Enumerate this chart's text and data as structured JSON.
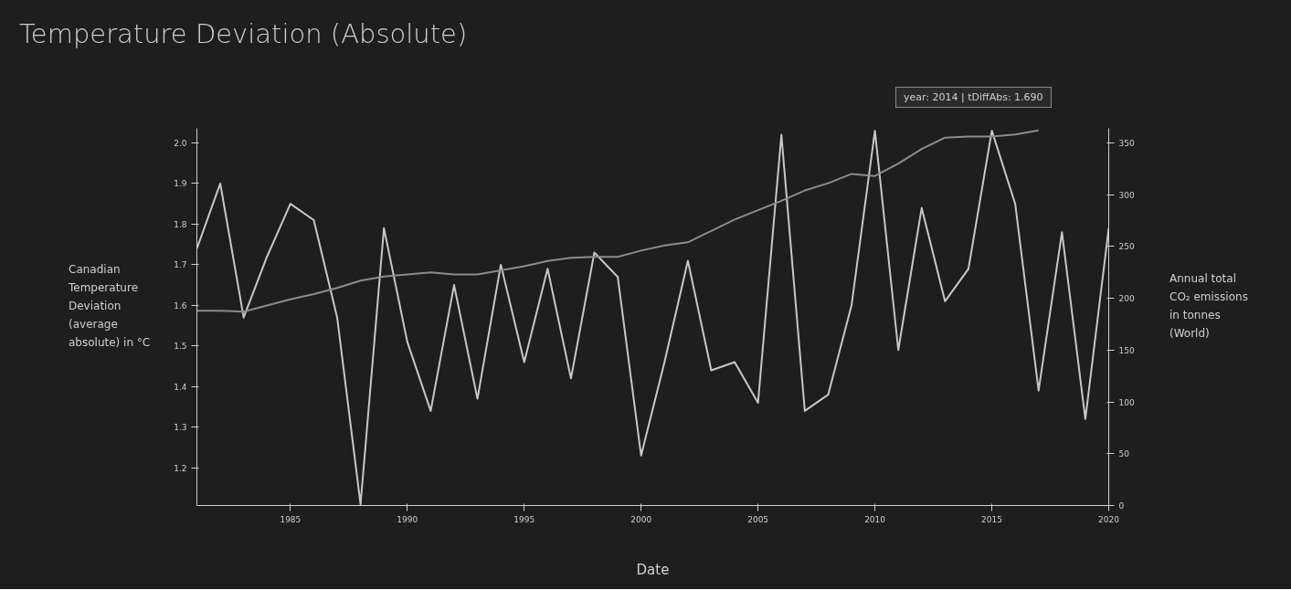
{
  "chart_data": {
    "type": "line",
    "title": "Temperature Deviation (Absolute)",
    "xlabel": "Date",
    "ylabel": "Canadian Temperature Deviation (average absolute) in °C",
    "y2label": "Annual total CO₂ emissions in tonnes (World)",
    "x": [
      1981,
      1982,
      1983,
      1984,
      1985,
      1986,
      1987,
      1988,
      1989,
      1990,
      1991,
      1992,
      1993,
      1994,
      1995,
      1996,
      1997,
      1998,
      1999,
      2000,
      2001,
      2002,
      2003,
      2004,
      2005,
      2006,
      2007,
      2008,
      2009,
      2010,
      2011,
      2012,
      2013,
      2014,
      2015,
      2016,
      2017,
      2018,
      2019,
      2020
    ],
    "series": [
      {
        "color": "#c8c8c8",
        "values": [
          1.74,
          1.9,
          1.57,
          1.72,
          1.85,
          1.81,
          1.57,
          1.11,
          1.79,
          1.51,
          1.34,
          1.65,
          1.37,
          1.7,
          1.46,
          1.69,
          1.42,
          1.73,
          1.67,
          1.23,
          1.46,
          1.71,
          1.44,
          1.46,
          1.36,
          2.02,
          1.34,
          1.38,
          1.6,
          2.03,
          1.49,
          1.84,
          1.61,
          1.69,
          2.03,
          1.85,
          1.39,
          1.78,
          1.32,
          1.79
        ]
      },
      {
        "color": "#8c8c8c",
        "axis": "y2",
        "x": [
          1981,
          1982,
          1983,
          1984,
          1985,
          1986,
          1987,
          1988,
          1989,
          1990,
          1991,
          1992,
          1993,
          1994,
          1995,
          1996,
          1997,
          1998,
          1999,
          2000,
          2001,
          2002,
          2003,
          2004,
          2005,
          2006,
          2007,
          2008,
          2009,
          2010,
          2011,
          2012,
          2013,
          2014,
          2015,
          2016,
          2017
        ],
        "values": [
          188,
          188,
          187,
          193,
          199,
          204,
          210,
          217,
          221,
          223,
          225,
          223,
          223,
          227,
          231,
          236,
          239,
          240,
          240,
          246,
          251,
          254,
          265,
          276,
          285,
          294,
          304,
          311,
          320,
          318,
          330,
          344,
          355,
          356,
          356,
          358,
          362
        ]
      }
    ],
    "xlim": [
      1981,
      2020
    ],
    "xticks": [
      1985,
      1990,
      1995,
      2000,
      2005,
      2010,
      2015,
      2020
    ],
    "ylim": [
      1.107,
      2.036
    ],
    "yticks": [
      1.2,
      1.3,
      1.4,
      1.5,
      1.6,
      1.7,
      1.8,
      1.9,
      {
        "value": 2,
        "label": "2.0"
      }
    ],
    "y2lim": [
      0,
      364
    ],
    "y2ticks": [
      0,
      50,
      100,
      150,
      200,
      250,
      300,
      350
    ],
    "annotations": [
      "year: 2014 | tDiffAbs: 1.690"
    ],
    "grid": false
  }
}
